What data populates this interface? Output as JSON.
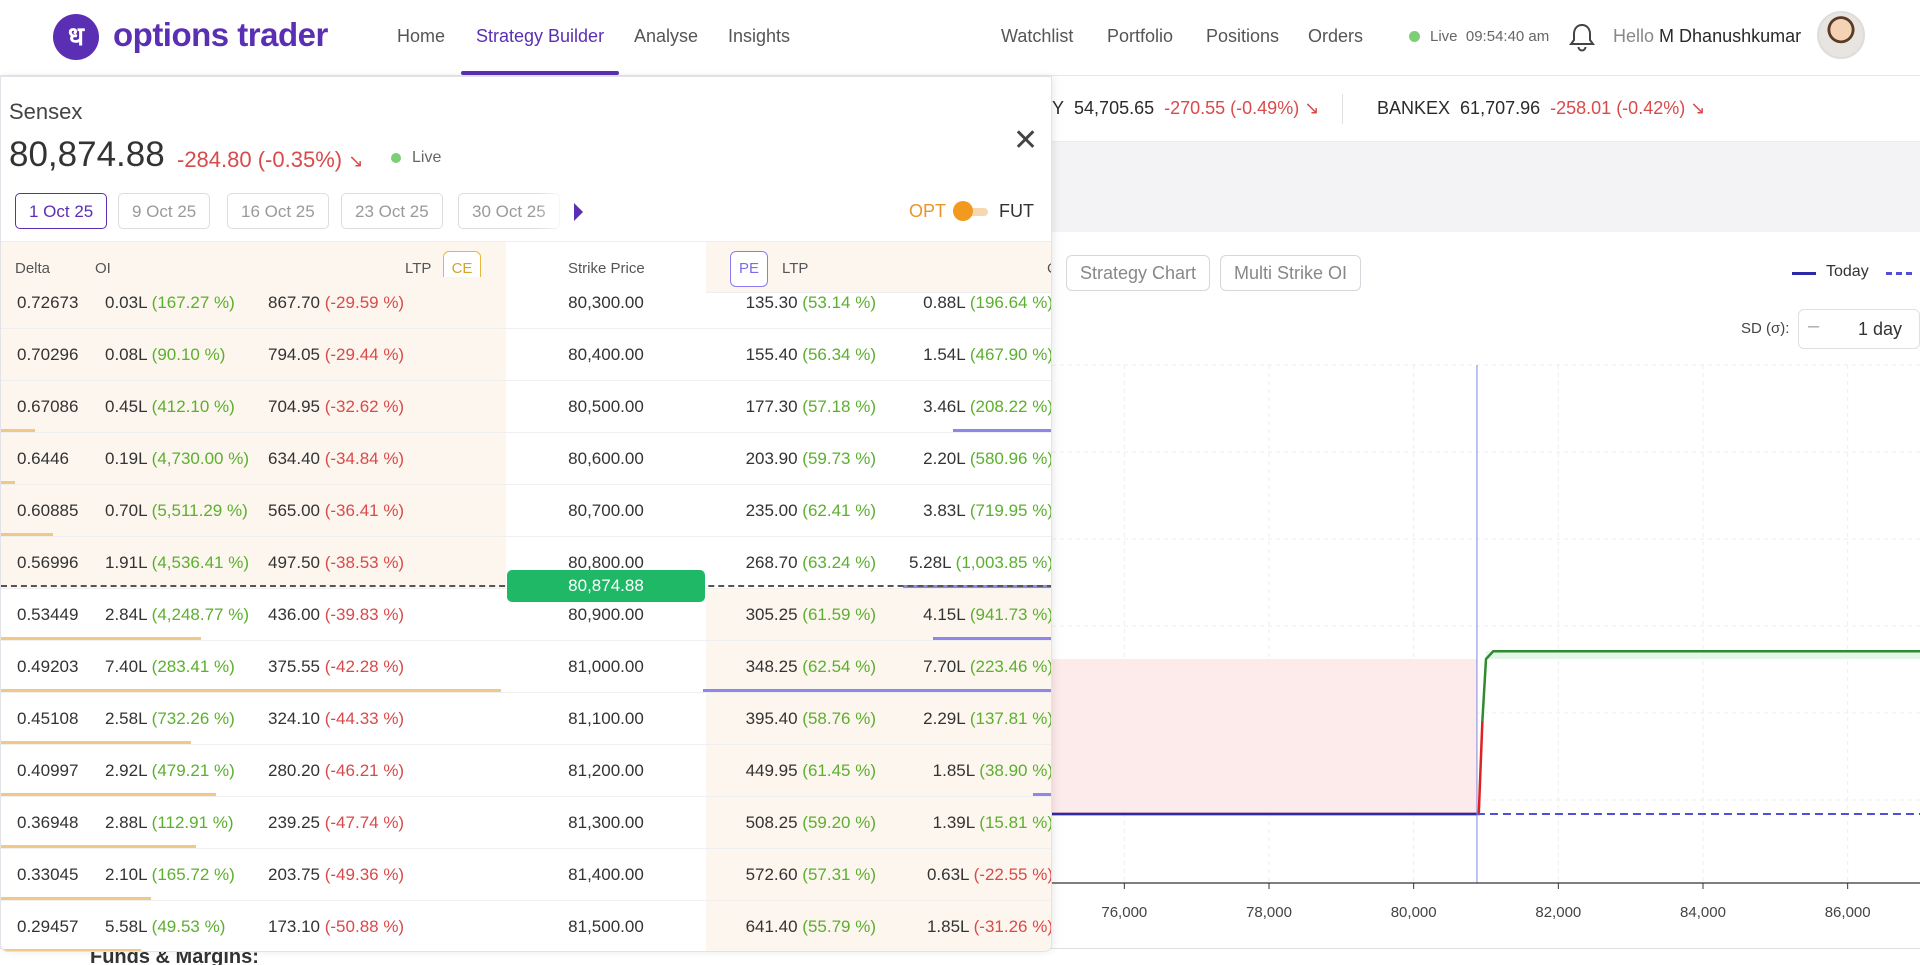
{
  "brand": {
    "logo_glyph": "ध",
    "name": "options trader"
  },
  "nav": {
    "home": "Home",
    "strategy_builder": "Strategy Builder",
    "analyse": "Analyse",
    "insights": "Insights",
    "watchlist": "Watchlist",
    "portfolio": "Portfolio",
    "positions": "Positions",
    "orders": "Orders"
  },
  "status": {
    "live": "Live",
    "time": "09:54:40 am"
  },
  "user": {
    "hello": "Hello",
    "name": "M Dhanushkumar"
  },
  "ticker": [
    {
      "name": "Y",
      "price": "54,705.65",
      "change": "-270.55 (-0.49%)"
    },
    {
      "name": "BANKEX",
      "price": "61,707.96",
      "change": "-258.01 (-0.42%)"
    }
  ],
  "chart_panel": {
    "tabs": [
      "Strategy Chart",
      "Multi Strike OI"
    ],
    "legend_today": "Today",
    "sd_label": "SD (σ):",
    "sd_minus": "–",
    "sd_value": "1 day"
  },
  "chart_data": {
    "type": "line",
    "x_ticks": [
      "76,000",
      "78,000",
      "80,000",
      "82,000",
      "84,000",
      "86,000"
    ],
    "xlim": [
      75000,
      87000
    ],
    "spot": 80874.88,
    "payoff_points": [
      [
        75000,
        0
      ],
      [
        80900,
        0
      ],
      [
        81000,
        1
      ],
      [
        81100,
        1.05
      ],
      [
        87000,
        1.05
      ]
    ],
    "colors": {
      "profit": "#2e8b2e",
      "loss": "#d22",
      "today": "#2b2ba8"
    }
  },
  "footer": {
    "text": "Funds & Margins:"
  },
  "option_chain": {
    "symbol": "Sensex",
    "price": "80,874.88",
    "change": "-284.80 (-0.35%)",
    "live": "Live",
    "expiries": [
      "1 Oct 25",
      "9 Oct 25",
      "16 Oct 25",
      "23 Oct 25",
      "30 Oct 25"
    ],
    "opt": "OPT",
    "fut": "FUT",
    "headers": {
      "delta": "Delta",
      "oi": "OI",
      "ltp_ce": "LTP",
      "ce": "CE",
      "strike": "Strike Price",
      "pe": "PE",
      "ltp_pe": "LTP",
      "oi_cut": "C"
    },
    "atm": "80,874.88",
    "rows": [
      {
        "delta": "0.72673",
        "oi": "0.03L",
        "oi_chg": "(167.27 %)",
        "ltp": "867.70",
        "ltp_chg": "(-29.59 %)",
        "strike": "80,300.00",
        "pe_ltp": "135.30",
        "pe_ltp_chg": "(53.14 %)",
        "pe_oi": "0.88L",
        "pe_oi_chg": "(196.64 %)"
      },
      {
        "delta": "0.70296",
        "oi": "0.08L",
        "oi_chg": "(90.10 %)",
        "ltp": "794.05",
        "ltp_chg": "(-29.44 %)",
        "strike": "80,400.00",
        "pe_ltp": "155.40",
        "pe_ltp_chg": "(56.34 %)",
        "pe_oi": "1.54L",
        "pe_oi_chg": "(467.90 %)"
      },
      {
        "delta": "0.67086",
        "oi": "0.45L",
        "oi_chg": "(412.10 %)",
        "ltp": "704.95",
        "ltp_chg": "(-32.62 %)",
        "strike": "80,500.00",
        "pe_ltp": "177.30",
        "pe_ltp_chg": "(57.18 %)",
        "pe_oi": "3.46L",
        "pe_oi_chg": "(208.22 %)"
      },
      {
        "delta": "0.6446",
        "oi": "0.19L",
        "oi_chg": "(4,730.00 %)",
        "ltp": "634.40",
        "ltp_chg": "(-34.84 %)",
        "strike": "80,600.00",
        "pe_ltp": "203.90",
        "pe_ltp_chg": "(59.73 %)",
        "pe_oi": "2.20L",
        "pe_oi_chg": "(580.96 %)"
      },
      {
        "delta": "0.60885",
        "oi": "0.70L",
        "oi_chg": "(5,511.29 %)",
        "ltp": "565.00",
        "ltp_chg": "(-36.41 %)",
        "strike": "80,700.00",
        "pe_ltp": "235.00",
        "pe_ltp_chg": "(62.41 %)",
        "pe_oi": "3.83L",
        "pe_oi_chg": "(719.95 %)"
      },
      {
        "delta": "0.56996",
        "oi": "1.91L",
        "oi_chg": "(4,536.41 %)",
        "ltp": "497.50",
        "ltp_chg": "(-38.53 %)",
        "strike": "80,800.00",
        "pe_ltp": "268.70",
        "pe_ltp_chg": "(63.24 %)",
        "pe_oi": "5.28L",
        "pe_oi_chg": "(1,003.85 %)"
      },
      {
        "delta": "0.53449",
        "oi": "2.84L",
        "oi_chg": "(4,248.77 %)",
        "ltp": "436.00",
        "ltp_chg": "(-39.83 %)",
        "strike": "80,900.00",
        "pe_ltp": "305.25",
        "pe_ltp_chg": "(61.59 %)",
        "pe_oi": "4.15L",
        "pe_oi_chg": "(941.73 %)"
      },
      {
        "delta": "0.49203",
        "oi": "7.40L",
        "oi_chg": "(283.41 %)",
        "ltp": "375.55",
        "ltp_chg": "(-42.28 %)",
        "strike": "81,000.00",
        "pe_ltp": "348.25",
        "pe_ltp_chg": "(62.54 %)",
        "pe_oi": "7.70L",
        "pe_oi_chg": "(223.46 %)"
      },
      {
        "delta": "0.45108",
        "oi": "2.58L",
        "oi_chg": "(732.26 %)",
        "ltp": "324.10",
        "ltp_chg": "(-44.33 %)",
        "strike": "81,100.00",
        "pe_ltp": "395.40",
        "pe_ltp_chg": "(58.76 %)",
        "pe_oi": "2.29L",
        "pe_oi_chg": "(137.81 %)"
      },
      {
        "delta": "0.40997",
        "oi": "2.92L",
        "oi_chg": "(479.21 %)",
        "ltp": "280.20",
        "ltp_chg": "(-46.21 %)",
        "strike": "81,200.00",
        "pe_ltp": "449.95",
        "pe_ltp_chg": "(61.45 %)",
        "pe_oi": "1.85L",
        "pe_oi_chg": "(38.90 %)"
      },
      {
        "delta": "0.36948",
        "oi": "2.88L",
        "oi_chg": "(112.91 %)",
        "ltp": "239.25",
        "ltp_chg": "(-47.74 %)",
        "strike": "81,300.00",
        "pe_ltp": "508.25",
        "pe_ltp_chg": "(59.20 %)",
        "pe_oi": "1.39L",
        "pe_oi_chg": "(15.81 %)"
      },
      {
        "delta": "0.33045",
        "oi": "2.10L",
        "oi_chg": "(165.72 %)",
        "ltp": "203.75",
        "ltp_chg": "(-49.36 %)",
        "strike": "81,400.00",
        "pe_ltp": "572.60",
        "pe_ltp_chg": "(57.31 %)",
        "pe_oi": "0.63L",
        "pe_oi_chg": "(-22.55 %)"
      },
      {
        "delta": "0.29457",
        "oi": "5.58L",
        "oi_chg": "(49.53 %)",
        "ltp": "173.10",
        "ltp_chg": "(-50.88 %)",
        "strike": "81,500.00",
        "pe_ltp": "641.40",
        "pe_ltp_chg": "(55.79 %)",
        "pe_oi": "1.85L",
        "pe_oi_chg": "(-31.26 %)"
      }
    ]
  }
}
